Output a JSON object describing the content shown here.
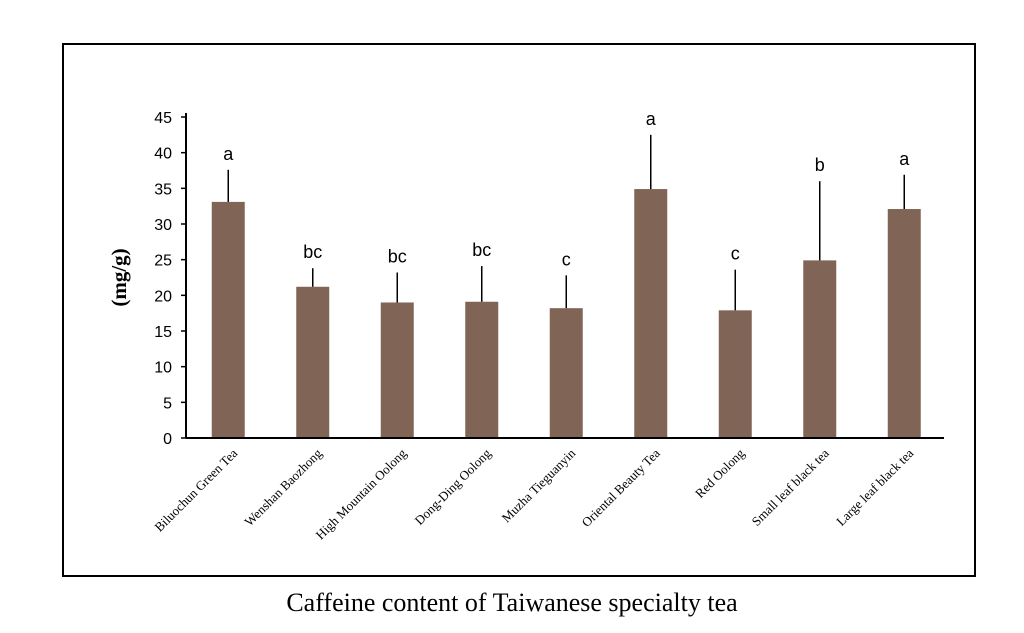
{
  "chart_data": {
    "type": "bar",
    "title": "Caffeine content of Taiwanese specialty tea",
    "xlabel": "",
    "ylabel": "(mg/g)",
    "ylim": [
      0,
      45
    ],
    "yticks": [
      0,
      5,
      10,
      15,
      20,
      25,
      30,
      35,
      40,
      45
    ],
    "grid": false,
    "bar_color": "#806557",
    "categories": [
      "Biluochun Green Tea",
      "Wenshan Baozhong",
      "High Mountain Oolong",
      "Dong-Ding Oolong",
      "Muzha Tieguanyin",
      "Oriental Beauty Tea",
      "Red Oolong",
      "Small leaf black tea",
      "Large leaf black tea"
    ],
    "values": [
      33.1,
      21.2,
      19.0,
      19.1,
      18.2,
      34.9,
      17.9,
      24.9,
      32.1
    ],
    "errors": [
      4.5,
      2.6,
      4.2,
      5.0,
      4.6,
      7.6,
      5.7,
      11.1,
      4.8
    ],
    "significance": [
      "a",
      "bc",
      "bc",
      "bc",
      "c",
      "a",
      "c",
      "b",
      "a"
    ]
  }
}
